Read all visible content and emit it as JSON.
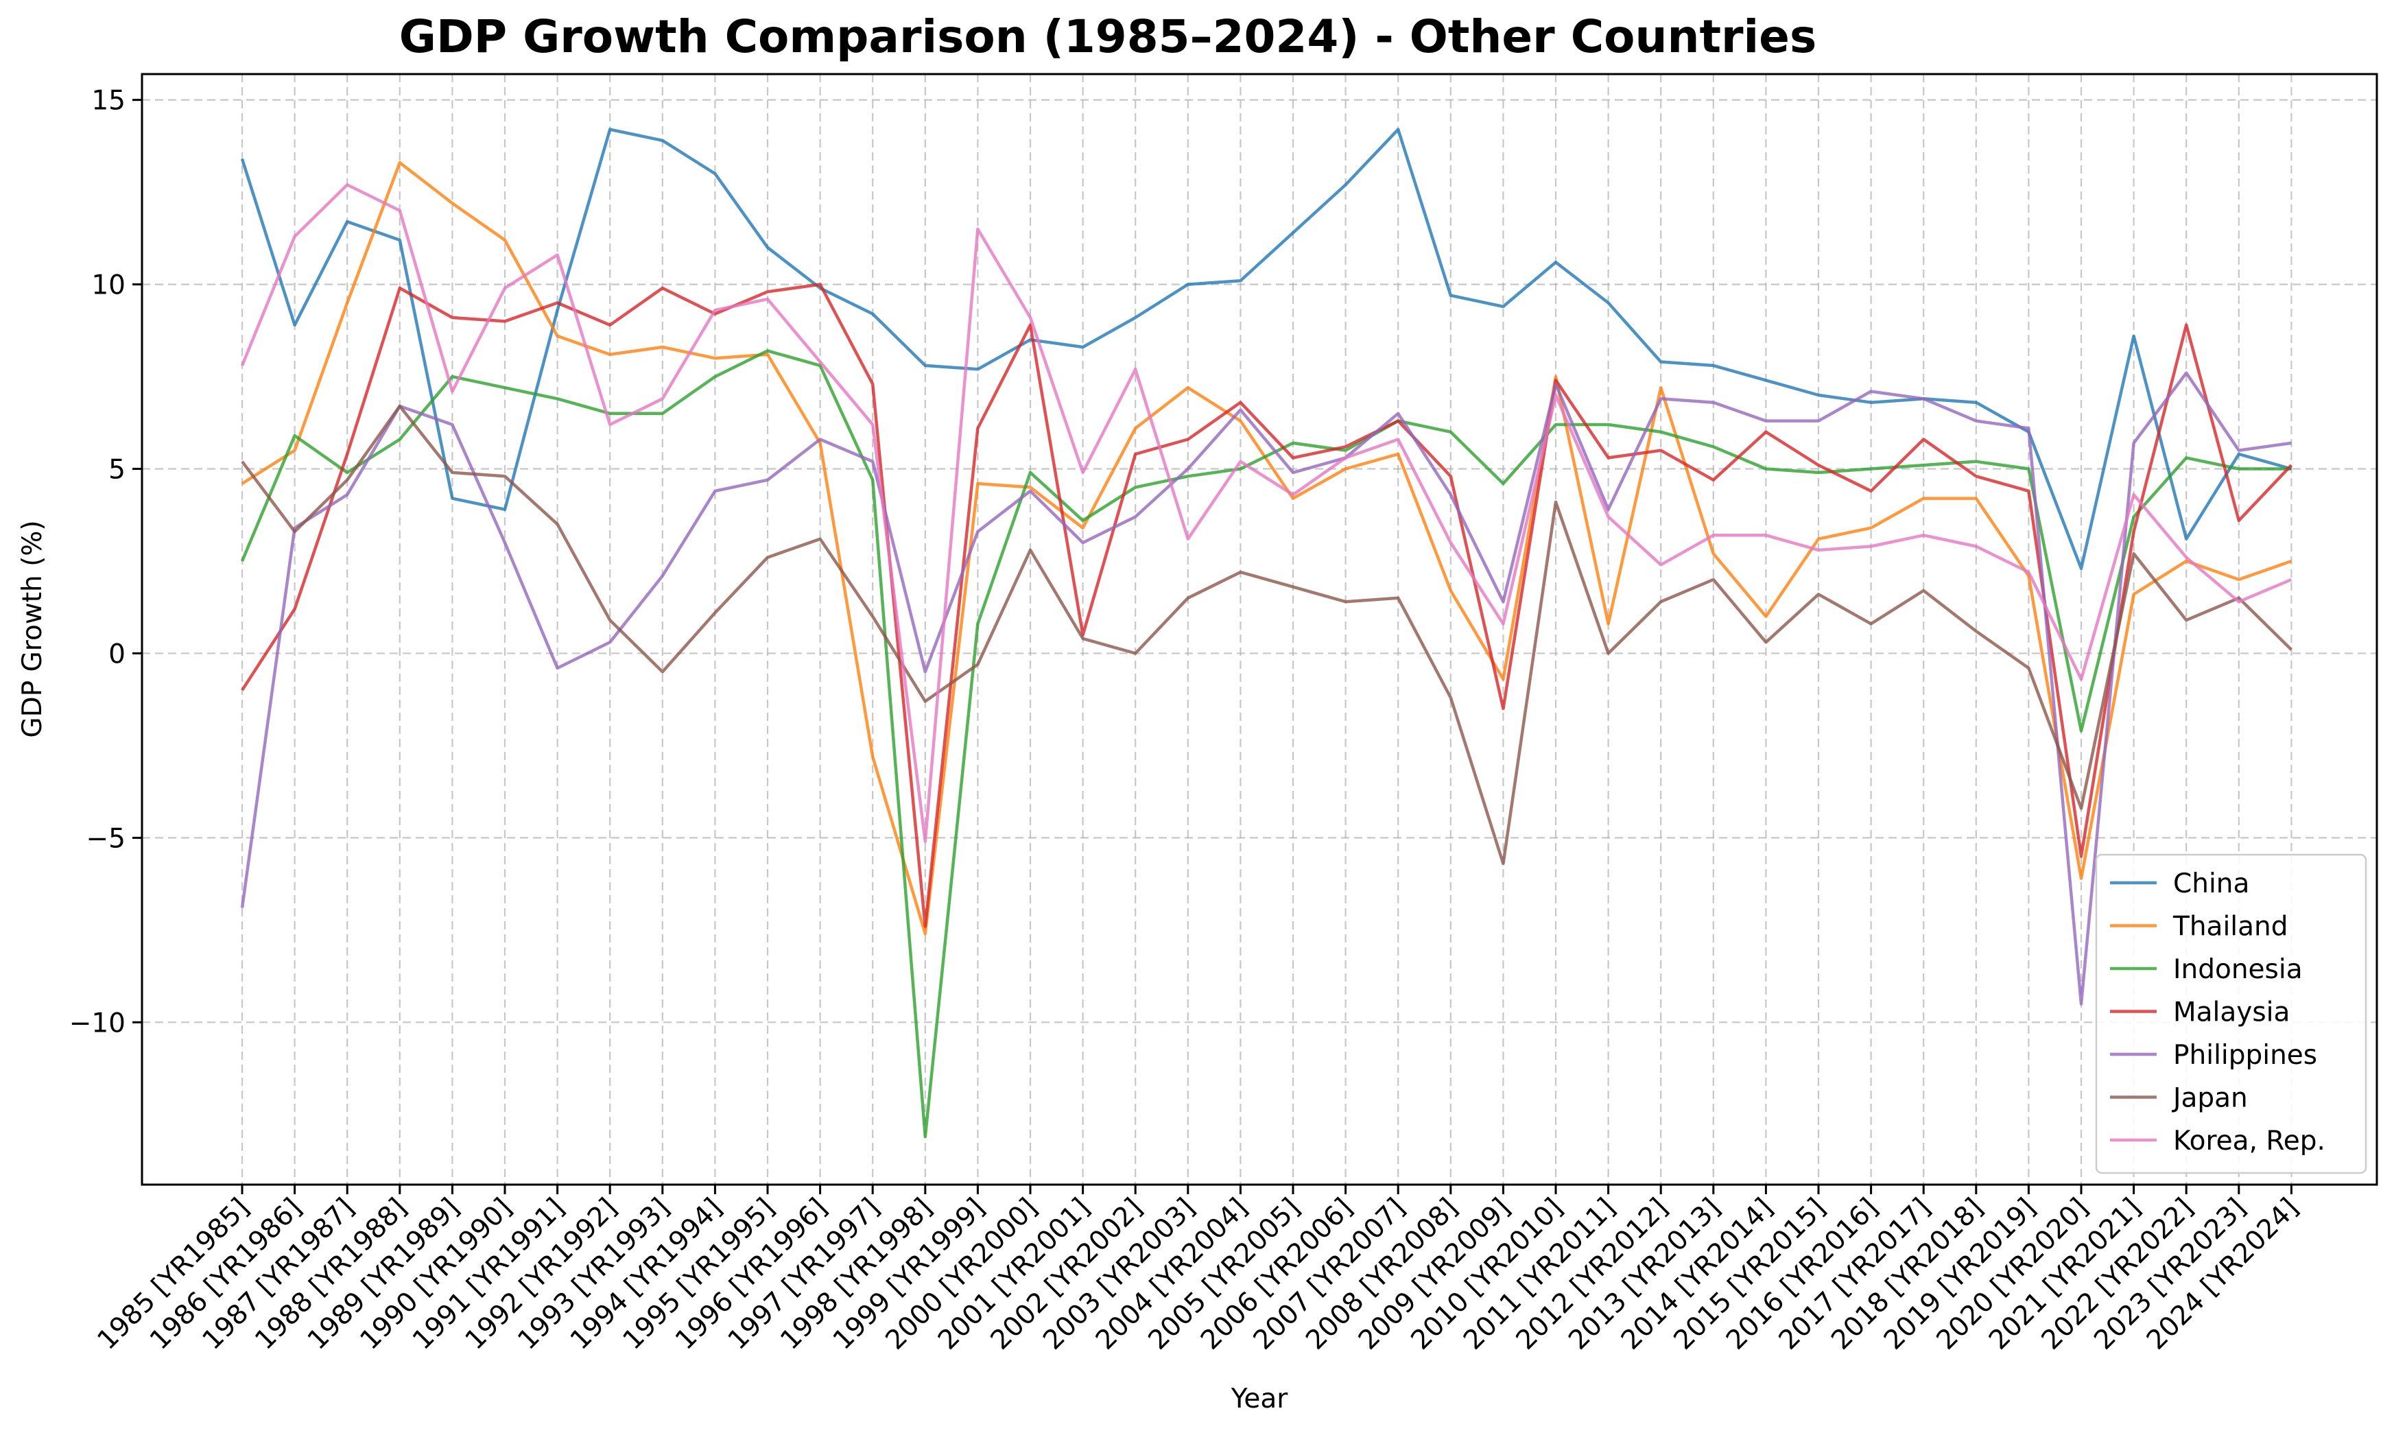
{
  "chart_data": {
    "type": "line",
    "title": "GDP Growth Comparison (1985–2024) - Other Countries",
    "xlabel": "Year",
    "ylabel": "GDP Growth (%)",
    "ylim": [
      -14.4,
      15.7
    ],
    "yticks": [
      -10,
      -5,
      0,
      5,
      10,
      15
    ],
    "ytick_labels": [
      "−10",
      "−5",
      "0",
      "5",
      "10",
      "15"
    ],
    "grid": true,
    "legend_position": "lower-right",
    "categories": [
      "1985 [YR1985]",
      "1986 [YR1986]",
      "1987 [YR1987]",
      "1988 [YR1988]",
      "1989 [YR1989]",
      "1990 [YR1990]",
      "1991 [YR1991]",
      "1992 [YR1992]",
      "1993 [YR1993]",
      "1994 [YR1994]",
      "1995 [YR1995]",
      "1996 [YR1996]",
      "1997 [YR1997]",
      "1998 [YR1998]",
      "1999 [YR1999]",
      "2000 [YR2000]",
      "2001 [YR2001]",
      "2002 [YR2002]",
      "2003 [YR2003]",
      "2004 [YR2004]",
      "2005 [YR2005]",
      "2006 [YR2006]",
      "2007 [YR2007]",
      "2008 [YR2008]",
      "2009 [YR2009]",
      "2010 [YR2010]",
      "2011 [YR2011]",
      "2012 [YR2012]",
      "2013 [YR2013]",
      "2014 [YR2014]",
      "2015 [YR2015]",
      "2016 [YR2016]",
      "2017 [YR2017]",
      "2018 [YR2018]",
      "2019 [YR2019]",
      "2020 [YR2020]",
      "2021 [YR2021]",
      "2022 [YR2022]",
      "2023 [YR2023]",
      "2024 [YR2024]"
    ],
    "series": [
      {
        "name": "China",
        "color": "#1f77b4",
        "values": [
          13.4,
          8.9,
          11.7,
          11.2,
          4.2,
          3.9,
          9.3,
          14.2,
          13.9,
          13.0,
          11.0,
          9.9,
          9.2,
          7.8,
          7.7,
          8.5,
          8.3,
          9.1,
          10.0,
          10.1,
          11.4,
          12.7,
          14.2,
          9.7,
          9.4,
          10.6,
          9.5,
          7.9,
          7.8,
          7.4,
          7.0,
          6.8,
          6.9,
          6.8,
          6.0,
          2.3,
          8.6,
          3.1,
          5.4,
          5.0
        ]
      },
      {
        "name": "Thailand",
        "color": "#ff7f0e",
        "values": [
          4.6,
          5.5,
          9.5,
          13.3,
          12.2,
          11.2,
          8.6,
          8.1,
          8.3,
          8.0,
          8.1,
          5.7,
          -2.8,
          -7.6,
          4.6,
          4.5,
          3.4,
          6.1,
          7.2,
          6.3,
          4.2,
          5.0,
          5.4,
          1.7,
          -0.7,
          7.5,
          0.8,
          7.2,
          2.7,
          1.0,
          3.1,
          3.4,
          4.2,
          4.2,
          2.1,
          -6.1,
          1.6,
          2.5,
          2.0,
          2.5
        ]
      },
      {
        "name": "Indonesia",
        "color": "#2ca02c",
        "values": [
          2.5,
          5.9,
          4.9,
          5.8,
          7.5,
          7.2,
          6.9,
          6.5,
          6.5,
          7.5,
          8.2,
          7.8,
          4.7,
          -13.1,
          0.8,
          4.9,
          3.6,
          4.5,
          4.8,
          5.0,
          5.7,
          5.5,
          6.3,
          6.0,
          4.6,
          6.2,
          6.2,
          6.0,
          5.6,
          5.0,
          4.9,
          5.0,
          5.1,
          5.2,
          5.0,
          -2.1,
          3.7,
          5.3,
          5.0,
          5.0
        ]
      },
      {
        "name": "Malaysia",
        "color": "#d62728",
        "values": [
          -1.0,
          1.2,
          5.4,
          9.9,
          9.1,
          9.0,
          9.5,
          8.9,
          9.9,
          9.2,
          9.8,
          10.0,
          7.3,
          -7.4,
          6.1,
          8.9,
          0.5,
          5.4,
          5.8,
          6.8,
          5.3,
          5.6,
          6.3,
          4.8,
          -1.5,
          7.4,
          5.3,
          5.5,
          4.7,
          6.0,
          5.1,
          4.4,
          5.8,
          4.8,
          4.4,
          -5.5,
          3.3,
          8.9,
          3.6,
          5.1
        ]
      },
      {
        "name": "Philippines",
        "color": "#9467bd",
        "values": [
          -6.9,
          3.4,
          4.3,
          6.7,
          6.2,
          3.0,
          -0.4,
          0.3,
          2.1,
          4.4,
          4.7,
          5.8,
          5.2,
          -0.5,
          3.3,
          4.4,
          3.0,
          3.7,
          5.0,
          6.6,
          4.9,
          5.3,
          6.5,
          4.3,
          1.4,
          7.3,
          3.9,
          6.9,
          6.8,
          6.3,
          6.3,
          7.1,
          6.9,
          6.3,
          6.1,
          -9.5,
          5.7,
          7.6,
          5.5,
          5.7
        ]
      },
      {
        "name": "Japan",
        "color": "#8c564b",
        "values": [
          5.2,
          3.3,
          4.7,
          6.7,
          4.9,
          4.8,
          3.5,
          0.9,
          -0.5,
          1.1,
          2.6,
          3.1,
          1.0,
          -1.3,
          -0.3,
          2.8,
          0.4,
          0.0,
          1.5,
          2.2,
          1.8,
          1.4,
          1.5,
          -1.2,
          -5.7,
          4.1,
          0.0,
          1.4,
          2.0,
          0.3,
          1.6,
          0.8,
          1.7,
          0.6,
          -0.4,
          -4.2,
          2.7,
          0.9,
          1.5,
          0.1
        ]
      },
      {
        "name": "Korea, Rep.",
        "color": "#e377c2",
        "values": [
          7.8,
          11.3,
          12.7,
          12.0,
          7.1,
          9.9,
          10.8,
          6.2,
          6.9,
          9.3,
          9.6,
          7.9,
          6.2,
          -5.1,
          11.5,
          9.1,
          4.9,
          7.7,
          3.1,
          5.2,
          4.3,
          5.3,
          5.8,
          3.0,
          0.8,
          7.0,
          3.7,
          2.4,
          3.2,
          3.2,
          2.8,
          2.9,
          3.2,
          2.9,
          2.2,
          -0.7,
          4.3,
          2.6,
          1.4,
          2.0
        ]
      }
    ]
  }
}
